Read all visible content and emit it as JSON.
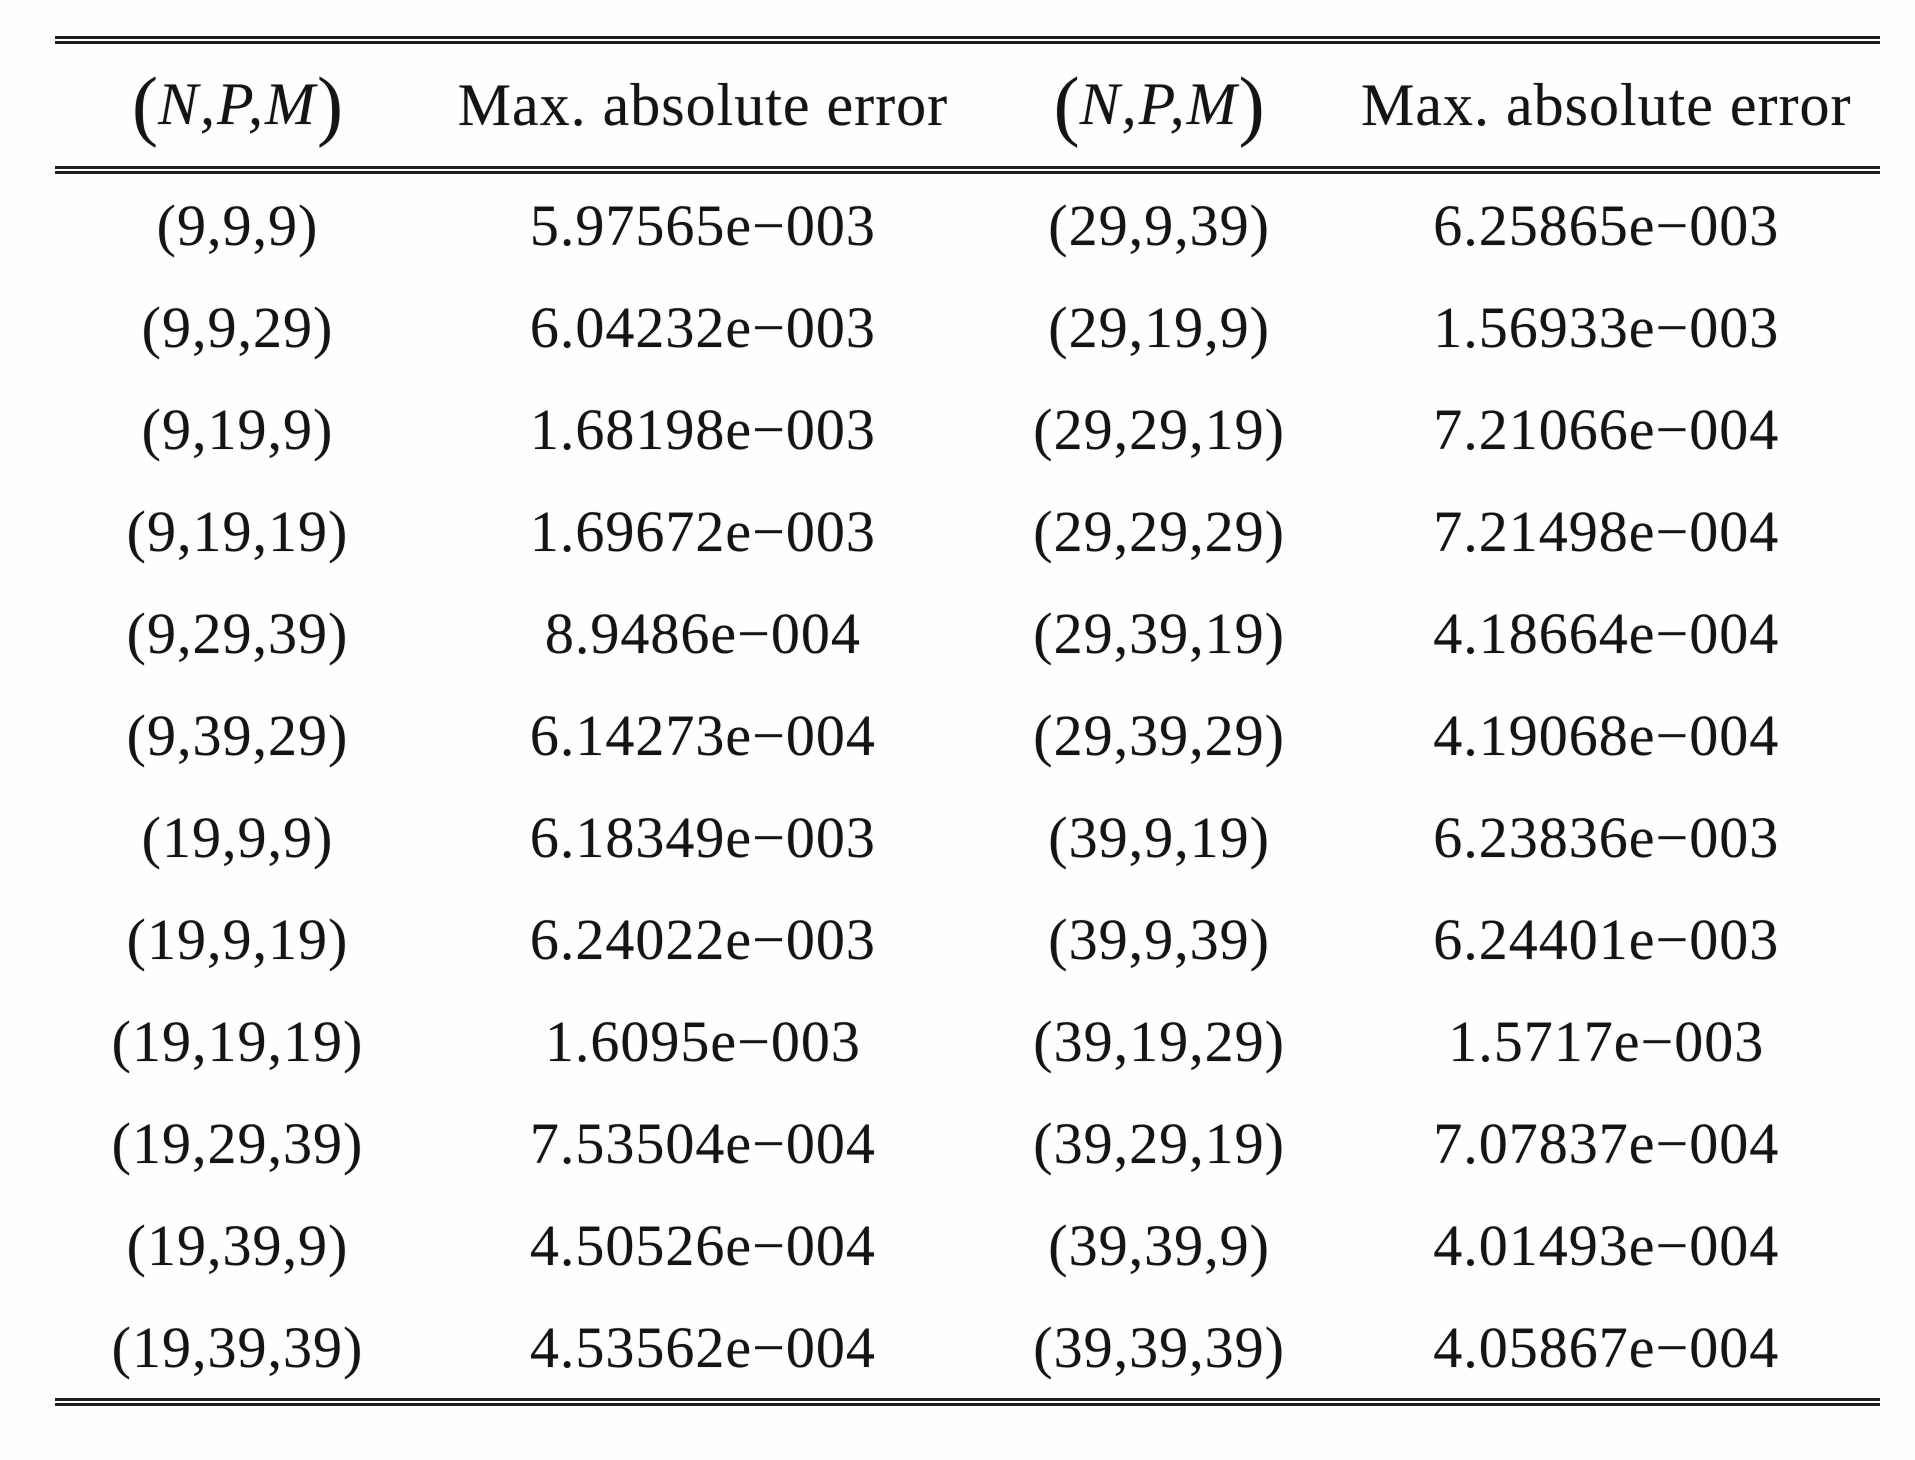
{
  "table": {
    "header": {
      "npm": {
        "open": "(",
        "vars": "N,P,M",
        "close": ")"
      },
      "error_label": "Max. absolute error"
    },
    "rows": [
      [
        "(9,9,9)",
        "5.97565e−003",
        "(29,9,39)",
        "6.25865e−003"
      ],
      [
        "(9,9,29)",
        "6.04232e−003",
        "(29,19,9)",
        "1.56933e−003"
      ],
      [
        "(9,19,9)",
        "1.68198e−003",
        "(29,29,19)",
        "7.21066e−004"
      ],
      [
        "(9,19,19)",
        "1.69672e−003",
        "(29,29,29)",
        "7.21498e−004"
      ],
      [
        "(9,29,39)",
        "8.9486e−004",
        "(29,39,19)",
        "4.18664e−004"
      ],
      [
        "(9,39,29)",
        "6.14273e−004",
        "(29,39,29)",
        "4.19068e−004"
      ],
      [
        "(19,9,9)",
        "6.18349e−003",
        "(39,9,19)",
        "6.23836e−003"
      ],
      [
        "(19,9,19)",
        "6.24022e−003",
        "(39,9,39)",
        "6.24401e−003"
      ],
      [
        "(19,19,19)",
        "1.6095e−003",
        "(39,19,29)",
        "1.5717e−003"
      ],
      [
        "(19,29,39)",
        "7.53504e−004",
        "(39,29,19)",
        "7.07837e−004"
      ],
      [
        "(19,39,9)",
        "4.50526e−004",
        "(39,39,9)",
        "4.01493e−004"
      ],
      [
        "(19,39,39)",
        "4.53562e−004",
        "(39,39,39)",
        "4.05867e−004"
      ]
    ]
  },
  "chart_data": {
    "type": "table",
    "title": "",
    "columns": [
      "(N,P,M)",
      "Max. absolute error",
      "(N,P,M)",
      "Max. absolute error"
    ],
    "rows": [
      [
        "(9,9,9)",
        "5.97565e−003",
        "(29,9,39)",
        "6.25865e−003"
      ],
      [
        "(9,9,29)",
        "6.04232e−003",
        "(29,19,9)",
        "1.56933e−003"
      ],
      [
        "(9,19,9)",
        "1.68198e−003",
        "(29,29,19)",
        "7.21066e−004"
      ],
      [
        "(9,19,19)",
        "1.69672e−003",
        "(29,29,29)",
        "7.21498e−004"
      ],
      [
        "(9,29,39)",
        "8.9486e−004",
        "(29,39,19)",
        "4.18664e−004"
      ],
      [
        "(9,39,29)",
        "6.14273e−004",
        "(29,39,29)",
        "4.19068e−004"
      ],
      [
        "(19,9,9)",
        "6.18349e−003",
        "(39,9,19)",
        "6.23836e−003"
      ],
      [
        "(19,9,19)",
        "6.24022e−003",
        "(39,9,39)",
        "6.24401e−003"
      ],
      [
        "(19,19,19)",
        "1.6095e−003",
        "(39,19,29)",
        "1.5717e−003"
      ],
      [
        "(19,29,39)",
        "7.53504e−004",
        "(39,29,19)",
        "7.07837e−004"
      ],
      [
        "(19,39,9)",
        "4.50526e−004",
        "(39,39,9)",
        "4.01493e−004"
      ],
      [
        "(19,39,39)",
        "4.53562e−004",
        "(39,39,39)",
        "4.05867e−004"
      ]
    ]
  }
}
